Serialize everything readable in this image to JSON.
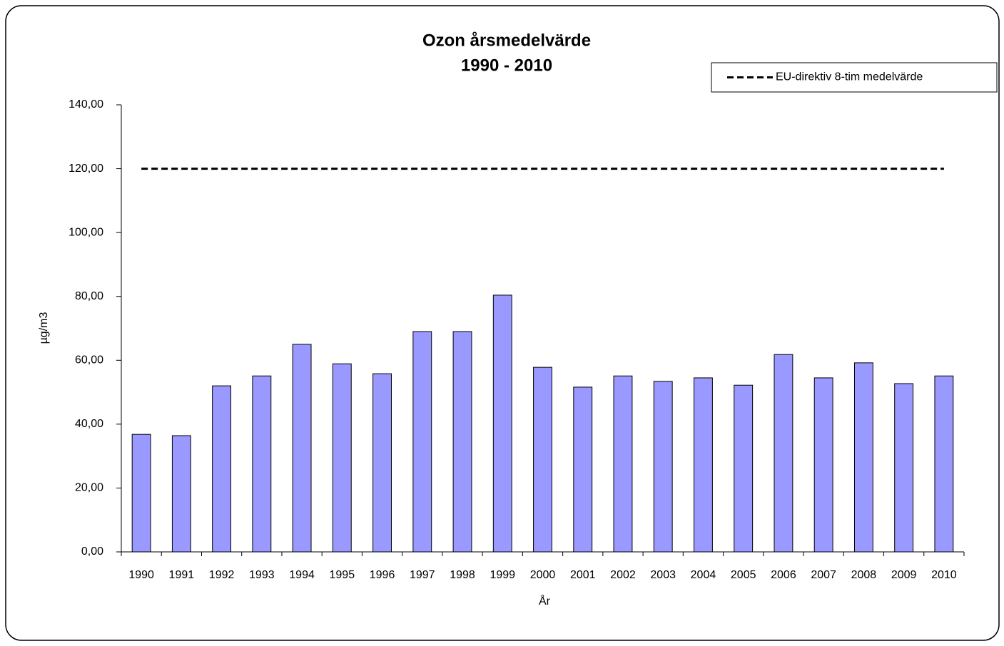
{
  "chart_data": {
    "type": "bar",
    "title": "Ozon årsmedelvärde",
    "subtitle": "1990 - 2010",
    "y_label": "µg/m3",
    "x_label": "År",
    "categories": [
      "1990",
      "1991",
      "1992",
      "1993",
      "1994",
      "1995",
      "1996",
      "1997",
      "1998",
      "1999",
      "2000",
      "2001",
      "2002",
      "2003",
      "2004",
      "2005",
      "2006",
      "2007",
      "2008",
      "2009",
      "2010"
    ],
    "series": [
      {
        "type": "bar",
        "color": "#9999ff",
        "values": [
          36.8,
          36.4,
          52.0,
          55.1,
          65.0,
          58.9,
          55.8,
          69.0,
          69.0,
          80.4,
          57.8,
          51.6,
          55.1,
          53.4,
          54.5,
          52.2,
          61.8,
          54.5,
          59.2,
          52.7,
          55.1
        ]
      },
      {
        "type": "line",
        "name": "EU-direktiv 8-tim medelvärde",
        "color": "#000000",
        "dashed": true,
        "values": [
          120,
          120,
          120,
          120,
          120,
          120,
          120,
          120,
          120,
          120,
          120,
          120,
          120,
          120,
          120,
          120,
          120,
          120,
          120,
          120,
          120
        ]
      }
    ],
    "ylim": [
      0,
      140
    ],
    "yticks": [
      {
        "value": 0,
        "label": "0,00"
      },
      {
        "value": 20,
        "label": "20,00"
      },
      {
        "value": 40,
        "label": "40,00"
      },
      {
        "value": 60,
        "label": "60,00"
      },
      {
        "value": 80,
        "label": "80,00"
      },
      {
        "value": 100,
        "label": "100,00"
      },
      {
        "value": 120,
        "label": "120,00"
      },
      {
        "value": 140,
        "label": "140,00"
      }
    ],
    "grid": false,
    "legend": "top-right"
  }
}
